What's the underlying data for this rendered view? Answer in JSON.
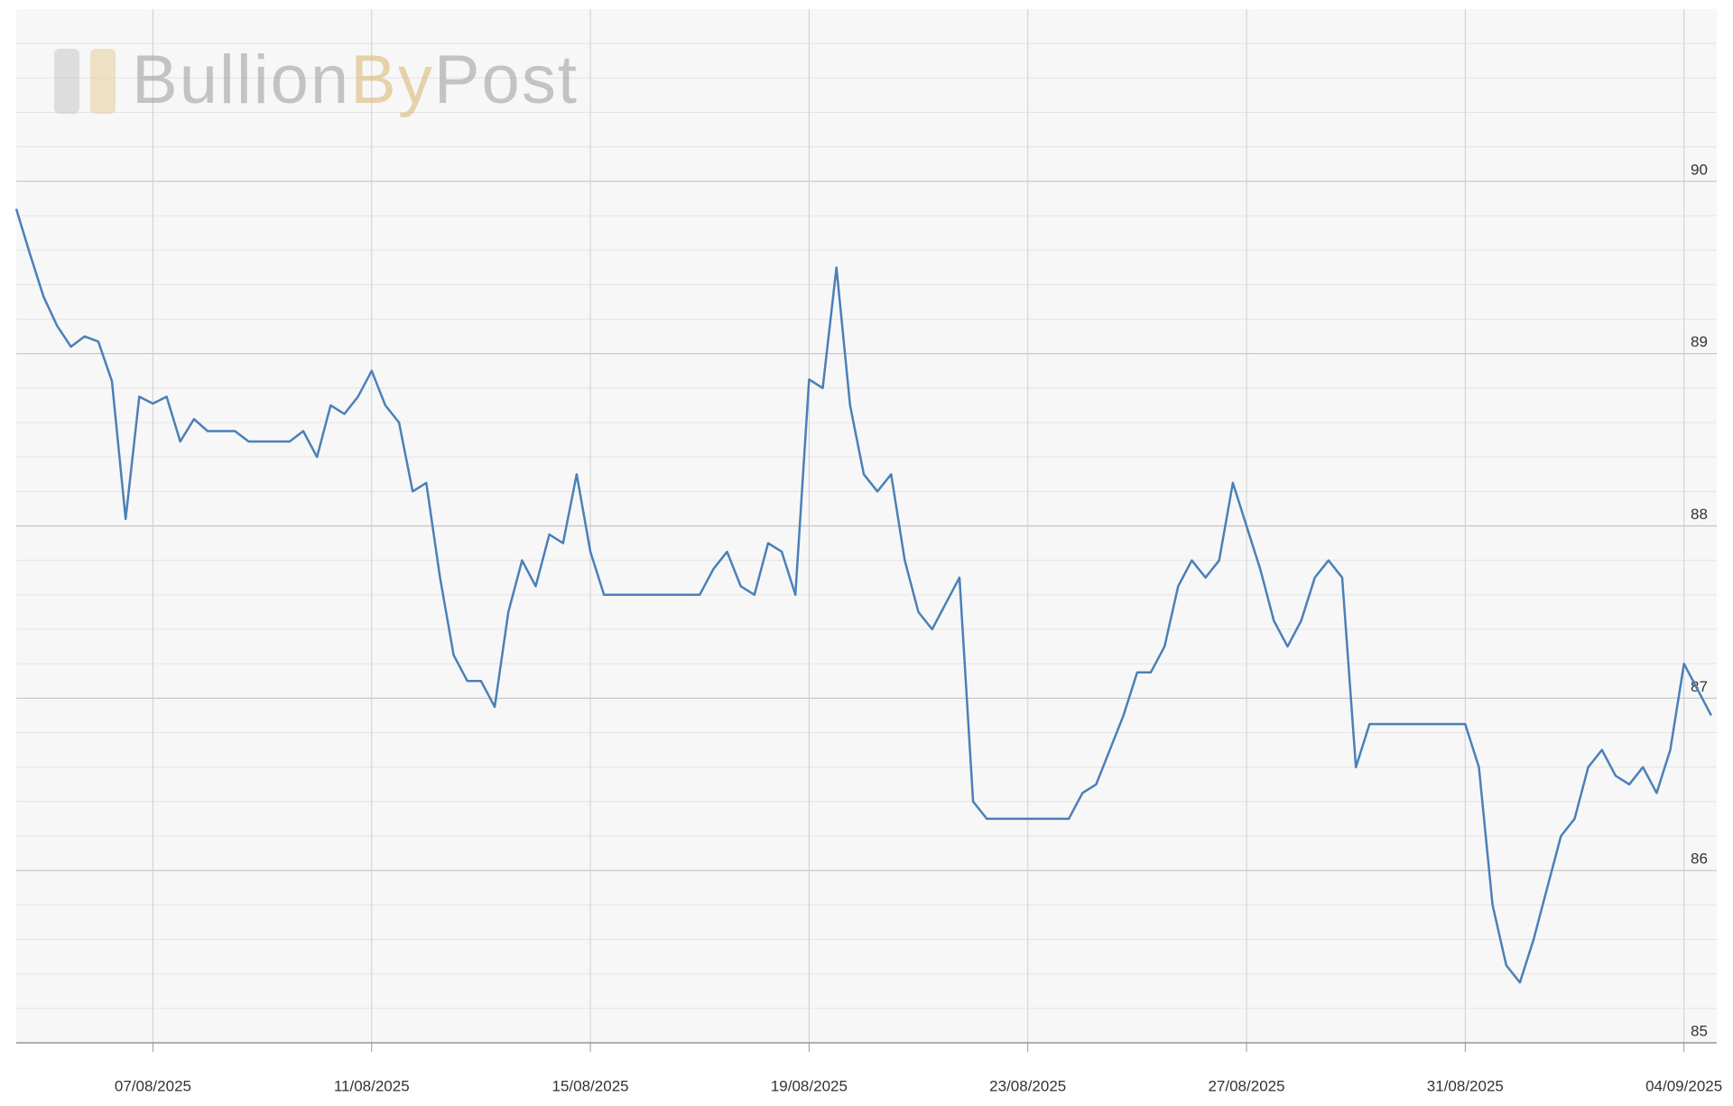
{
  "watermark": [
    "Bullion",
    "By",
    "Post"
  ],
  "chart_data": {
    "type": "line",
    "x": [
      4.5,
      4.75,
      5,
      5.25,
      5.5,
      5.75,
      6,
      6.25,
      6.5,
      6.75,
      7,
      7.25,
      7.5,
      7.75,
      8,
      8.25,
      8.5,
      8.75,
      9,
      9.25,
      9.5,
      9.75,
      10,
      10.25,
      10.5,
      10.75,
      11,
      11.25,
      11.5,
      11.75,
      12,
      12.25,
      12.5,
      12.75,
      13,
      13.25,
      13.5,
      13.75,
      14,
      14.25,
      14.5,
      14.75,
      15,
      15.25,
      15.5,
      15.75,
      16,
      16.25,
      16.5,
      16.75,
      17,
      17.25,
      17.5,
      17.75,
      18,
      18.25,
      18.5,
      18.75,
      19,
      19.25,
      19.5,
      19.75,
      20,
      20.25,
      20.5,
      20.75,
      21,
      21.25,
      21.5,
      21.75,
      22,
      22.25,
      22.5,
      22.75,
      23,
      23.25,
      23.5,
      23.75,
      24,
      24.25,
      24.5,
      24.75,
      25,
      25.25,
      25.5,
      25.75,
      26,
      26.25,
      26.5,
      26.75,
      27,
      27.25,
      27.5,
      27.75,
      28,
      28.25,
      28.5,
      28.75,
      29,
      29.25,
      29.5,
      29.75,
      30,
      30.25,
      30.5,
      30.75,
      31,
      31.25,
      31.5,
      31.75,
      32,
      32.25,
      32.5,
      32.75,
      33,
      33.25,
      33.5,
      33.75,
      34,
      34.25,
      34.5,
      34.75,
      35,
      35.25,
      35.5
    ],
    "series": [
      {
        "color": "#4a80b8",
        "values": [
          89.84,
          89.58,
          89.33,
          89.16,
          89.04,
          89.1,
          89.07,
          88.84,
          88.04,
          88.75,
          88.71,
          88.75,
          88.49,
          88.62,
          88.55,
          88.55,
          88.55,
          88.49,
          88.49,
          88.49,
          88.49,
          88.55,
          88.4,
          88.7,
          88.65,
          88.75,
          88.9,
          88.7,
          88.6,
          88.2,
          88.25,
          87.7,
          87.25,
          87.1,
          87.1,
          86.95,
          87.5,
          87.8,
          87.65,
          87.95,
          87.9,
          88.3,
          87.85,
          87.6,
          87.6,
          87.6,
          87.6,
          87.6,
          87.6,
          87.6,
          87.6,
          87.75,
          87.85,
          87.65,
          87.6,
          87.9,
          87.85,
          87.6,
          88.85,
          88.8,
          89.5,
          88.7,
          88.3,
          88.2,
          88.3,
          87.8,
          87.5,
          87.4,
          87.55,
          87.7,
          86.4,
          86.3,
          86.3,
          86.3,
          86.3,
          86.3,
          86.3,
          86.3,
          86.45,
          86.5,
          86.7,
          86.9,
          87.15,
          87.15,
          87.3,
          87.65,
          87.8,
          87.7,
          87.8,
          88.25,
          88.0,
          87.75,
          87.45,
          87.3,
          87.45,
          87.7,
          87.8,
          87.7,
          86.6,
          86.85,
          86.85,
          86.85,
          86.85,
          86.85,
          86.85,
          86.85,
          86.85,
          86.6,
          85.8,
          85.45,
          85.35,
          85.6,
          85.9,
          86.2,
          86.3,
          86.6,
          86.7,
          86.55,
          86.5,
          86.6,
          86.45,
          86.7,
          87.2,
          87.05,
          86.9
        ]
      }
    ],
    "xlim": [
      4.5,
      35.6
    ],
    "ylim": [
      85,
      91
    ],
    "xticks": [
      {
        "value": 7,
        "label": "07/08/2025"
      },
      {
        "value": 11,
        "label": "11/08/2025"
      },
      {
        "value": 15,
        "label": "15/08/2025"
      },
      {
        "value": 19,
        "label": "19/08/2025"
      },
      {
        "value": 23,
        "label": "23/08/2025"
      },
      {
        "value": 27,
        "label": "27/08/2025"
      },
      {
        "value": 31,
        "label": "31/08/2025"
      },
      {
        "value": 35,
        "label": "04/09/2025"
      }
    ],
    "yticks": [
      85,
      86,
      87,
      88,
      89,
      90
    ],
    "yminorticks": [
      85.2,
      85.4,
      85.6,
      85.8,
      86.2,
      86.4,
      86.6,
      86.8,
      87.2,
      87.4,
      87.6,
      87.8,
      88.2,
      88.4,
      88.6,
      88.8,
      89.2,
      89.4,
      89.6,
      89.8,
      90.2,
      90.4,
      90.6,
      90.8
    ],
    "grid": true
  }
}
